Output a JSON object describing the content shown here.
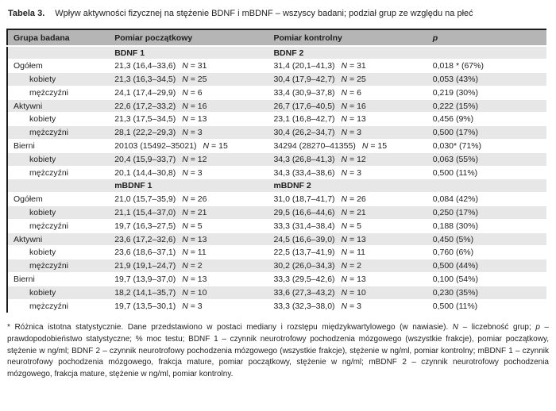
{
  "colors": {
    "header_bg": "#b5b5b5",
    "stripe_bg": "#e7e7e7",
    "border": "#1c1c1c",
    "text": "#1f1f1f"
  },
  "title": {
    "label": "Tabela 3.",
    "text": "Wpływ aktywności fizycznej na stężenie BDNF i mBDNF – wszyscy badani; podział grup ze względu na płeć"
  },
  "table": {
    "columns": [
      "Grupa badana",
      "Pomiar początkowy",
      "Pomiar kontrolny",
      "p"
    ],
    "n_label": "N",
    "rows": [
      {
        "type": "subheader",
        "m1": "BDNF 1",
        "m2": "BDNF 2"
      },
      {
        "type": "data",
        "group": "Ogółem",
        "indent": false,
        "m1": "21,3 (16,4–33,6)",
        "n1": "31",
        "m2": "31,4 (20,1–41,3)",
        "n2": "31",
        "p": "0,018 * (67%)"
      },
      {
        "type": "data",
        "group": "kobiety",
        "indent": true,
        "m1": "21,3 (16,3–34,5)",
        "n1": "25",
        "m2": "30,4 (17,9–42,7)",
        "n2": "25",
        "p": "0,053 (43%)"
      },
      {
        "type": "data",
        "group": "mężczyźni",
        "indent": true,
        "m1": "24,1 (17,4–29,9)",
        "n1": "6",
        "m2": "33,4 (30,9–37,8)",
        "n2": "6",
        "p": "0,219 (30%)"
      },
      {
        "type": "data",
        "group": "Aktywni",
        "indent": false,
        "m1": "22,6 (17,2–33,2)",
        "n1": "16",
        "m2": "26,7 (17,6–40,5)",
        "n2": "16",
        "p": "0,222 (15%)"
      },
      {
        "type": "data",
        "group": "kobiety",
        "indent": true,
        "m1": "21,3 (17,5–34,5)",
        "n1": "13",
        "m2": "23,1 (16,8–42,7)",
        "n2": "13",
        "p": "0,456 (9%)"
      },
      {
        "type": "data",
        "group": "mężczyźni",
        "indent": true,
        "m1": "28,1 (22,2–29,3)",
        "n1": "3",
        "m2": "30,4 (26,2–34,7)",
        "n2": "3",
        "p": "0,500 (17%)"
      },
      {
        "type": "data",
        "group": "Bierni",
        "indent": false,
        "m1": "20103 (15492–35021)",
        "n1": "15",
        "m2": "34294 (28270–41355)",
        "n2": "15",
        "p": "0,030* (71%)"
      },
      {
        "type": "data",
        "group": "kobiety",
        "indent": true,
        "m1": "20,4 (15,9–33,7)",
        "n1": "12",
        "m2": "34,3 (26,8–41,3)",
        "n2": "12",
        "p": "0,063 (55%)"
      },
      {
        "type": "data",
        "group": "mężczyźni",
        "indent": true,
        "m1": "20,1 (14,4–30,8)",
        "n1": "3",
        "m2": "34,3 (33,4–38,6)",
        "n2": "3",
        "p": "0,500 (11%)"
      },
      {
        "type": "subheader",
        "m1": "mBDNF 1",
        "m2": "mBDNF 2"
      },
      {
        "type": "data",
        "group": "Ogółem",
        "indent": false,
        "m1": "21,0 (15,7–35,9)",
        "n1": "26",
        "m2": "31,0 (18,7–41,7)",
        "n2": "26",
        "p": "0,084 (42%)"
      },
      {
        "type": "data",
        "group": "kobiety",
        "indent": true,
        "m1": "21,1 (15,4–37,0)",
        "n1": "21",
        "m2": "29,5 (16,6–44,6)",
        "n2": "21",
        "p": "0,250 (17%)"
      },
      {
        "type": "data",
        "group": "mężczyźni",
        "indent": true,
        "m1": "19,7 (16,3–27,5)",
        "n1": "5",
        "m2": "33,3 (31,4–38,4)",
        "n2": "5",
        "p": "0,188 (30%)"
      },
      {
        "type": "data",
        "group": "Aktywni",
        "indent": false,
        "m1": "23,6 (17,2–32,6)",
        "n1": "13",
        "m2": "24,5 (16,6–39,0)",
        "n2": "13",
        "p": "0,450 (5%)"
      },
      {
        "type": "data",
        "group": "kobiety",
        "indent": true,
        "m1": "23,6 (18,6–37,1)",
        "n1": "11",
        "m2": "22,5 (13,7–41,9)",
        "n2": "11",
        "p": "0,760 (6%)"
      },
      {
        "type": "data",
        "group": "mężczyźni",
        "indent": true,
        "m1": "21,9 (19,1–24,7)",
        "n1": "2",
        "m2": "30,2 (26,0–34,3)",
        "n2": "2",
        "p": "0,500 (44%)"
      },
      {
        "type": "data",
        "group": "Bierni",
        "indent": false,
        "m1": "19,7 (13,9–37,0)",
        "n1": "13",
        "m2": "33,3 (29,5–42,6)",
        "n2": "13",
        "p": "0,100 (54%)"
      },
      {
        "type": "data",
        "group": "kobiety",
        "indent": true,
        "m1": "18,2 (14,1–35,7)",
        "n1": "10",
        "m2": "33,6 (27,3–43,2)",
        "n2": "10",
        "p": "0,230 (35%)"
      },
      {
        "type": "data",
        "group": "mężczyźni",
        "indent": true,
        "m1": "19,7 (13,5–30,1)",
        "n1": "3",
        "m2": "33,3 (32,3–38,0)",
        "n2": "3",
        "p": "0,500 (11%)"
      }
    ]
  },
  "footnote": {
    "segments": [
      {
        "t": "* Różnica istotna statystycznie. Dane przedstawiono w postaci mediany i rozstępu międzykwartylowego (w nawiasie). "
      },
      {
        "t": "N",
        "i": true
      },
      {
        "t": " – liczebność grup; "
      },
      {
        "t": "p",
        "i": true
      },
      {
        "t": " – prawdopodobieństwo statystyczne; % moc testu; BDNF 1 – czynnik neurotrofowy pochodzenia mózgowego (wszystkie frakcje), pomiar początkowy, stężenie w ng/ml; BDNF 2 – czynnik neurotrofowy pochodzenia mózgowego (wszystkie frakcje), stężenie w ng/ml, pomiar kontrolny; mBDNF 1 – czynnik neurotrofowy pochodzenia mózgowego, frakcja mature, pomiar początkowy, stężenie w ng/ml; mBDNF 2 – czynnik neurotrofowy pochodzenia mózgowego, frakcja mature, stężenie w ng/ml, pomiar kontrolny."
      }
    ]
  }
}
